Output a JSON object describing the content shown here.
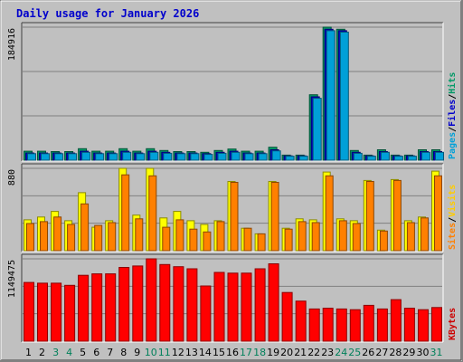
{
  "chart_data": {
    "type": "bar",
    "title": "Daily usage for January 2026",
    "days": [
      "1",
      "2",
      "3",
      "4",
      "5",
      "6",
      "7",
      "8",
      "9",
      "10",
      "11",
      "12",
      "13",
      "14",
      "15",
      "16",
      "17",
      "18",
      "19",
      "20",
      "21",
      "22",
      "23",
      "24",
      "25",
      "26",
      "27",
      "28",
      "29",
      "30",
      "31"
    ],
    "weekend_days": [
      "3",
      "4",
      "10",
      "11",
      "17",
      "18",
      "24",
      "25",
      "31"
    ],
    "panels": [
      {
        "id": "hits-files-pages",
        "y_tick_label": "184916",
        "y_max": 184916,
        "label_words": [
          "Pages",
          "Files",
          "Hits"
        ],
        "label_colors": [
          "#00a0d8",
          "#0000cc",
          "#009966"
        ],
        "series": [
          {
            "name": "Hits",
            "color": "#009966",
            "values": [
              12500,
              12500,
              12000,
              12000,
              16000,
              12500,
              12500,
              16000,
              12500,
              16000,
              13500,
              12000,
              12000,
              11000,
              13500,
              15500,
              12500,
              12500,
              18000,
              7000,
              7000,
              91000,
              184916,
              182000,
              13500,
              7000,
              14500,
              7000,
              7000,
              14500,
              14500
            ]
          },
          {
            "name": "Files",
            "color": "#0000cc",
            "values": [
              10000,
              10000,
              10000,
              10000,
              12500,
              10000,
              10000,
              12500,
              10000,
              12500,
              11000,
              10000,
              10000,
              9000,
              11000,
              12500,
              10000,
              10000,
              14500,
              6000,
              6000,
              88000,
              182000,
              180000,
              11000,
              6000,
              12000,
              6000,
              6000,
              12000,
              12000
            ]
          },
          {
            "name": "Pages",
            "color": "#00a0d8",
            "values": [
              9000,
              9000,
              9000,
              9000,
              11000,
              9000,
              9000,
              11000,
              9000,
              11000,
              9500,
              9000,
              9000,
              8000,
              9500,
              11000,
              9000,
              9000,
              13000,
              5500,
              5500,
              86000,
              180000,
              178000,
              9500,
              5500,
              11000,
              5500,
              5500,
              11000,
              11000
            ]
          }
        ]
      },
      {
        "id": "visits-sites",
        "y_tick_label": "880",
        "y_max": 880,
        "label_words": [
          "Sites",
          "Visits"
        ],
        "label_colors": [
          "#ff8000",
          "#ffcc00"
        ],
        "series": [
          {
            "name": "Visits",
            "color": "#ffff00",
            "values": [
              330,
              360,
              420,
              320,
              620,
              250,
              320,
              880,
              380,
              880,
              350,
              420,
              320,
              280,
              320,
              740,
              240,
              180,
              740,
              240,
              340,
              330,
              840,
              340,
              320,
              750,
              220,
              760,
              320,
              360,
              850
            ]
          },
          {
            "name": "Sites",
            "color": "#ff8000",
            "values": [
              290,
              310,
              360,
              280,
              500,
              270,
              300,
              810,
              340,
              800,
              250,
              330,
              230,
              200,
              310,
              730,
              240,
              180,
              730,
              230,
              310,
              300,
              800,
              320,
              290,
              740,
              210,
              750,
              300,
              350,
              800
            ]
          }
        ]
      },
      {
        "id": "kbytes",
        "y_tick_label": "1149475",
        "y_max": 1149475,
        "label_words": [
          "KBytes"
        ],
        "label_colors": [
          "#cc0000"
        ],
        "series": [
          {
            "name": "KBytes",
            "color": "#ff0000",
            "values": [
              820000,
              810000,
              810000,
              780000,
              920000,
              940000,
              940000,
              1030000,
              1050000,
              1149475,
              1070000,
              1040000,
              1010000,
              770000,
              960000,
              950000,
              950000,
              1010000,
              1080000,
              680000,
              560000,
              450000,
              460000,
              450000,
              440000,
              500000,
              450000,
              580000,
              460000,
              440000,
              470000
            ]
          }
        ]
      }
    ]
  }
}
